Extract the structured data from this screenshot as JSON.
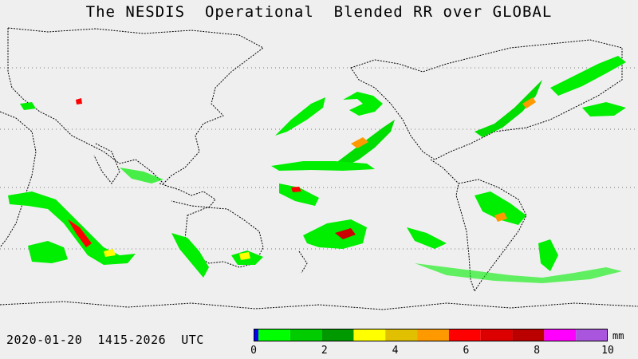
{
  "title": "The NESDIS  Operational  Blended RR over GLOBAL",
  "timestamp": "2020-01-20  1415-2026  UTC",
  "legend": {
    "unit": "mm",
    "range": [
      0,
      10
    ],
    "tick_labels": [
      "0",
      "2",
      "4",
      "6",
      "8",
      "10"
    ],
    "colors": [
      "#0000ff",
      "#00ff00",
      "#00cc00",
      "#009900",
      "#ffff00",
      "#e0c000",
      "#ff9900",
      "#ff0000",
      "#dd0000",
      "#bb0000",
      "#ff00ff",
      "#aa55dd"
    ]
  },
  "map": {
    "projection": "equirectangular",
    "background": "#efefef",
    "precip_color": "#00ff00"
  }
}
